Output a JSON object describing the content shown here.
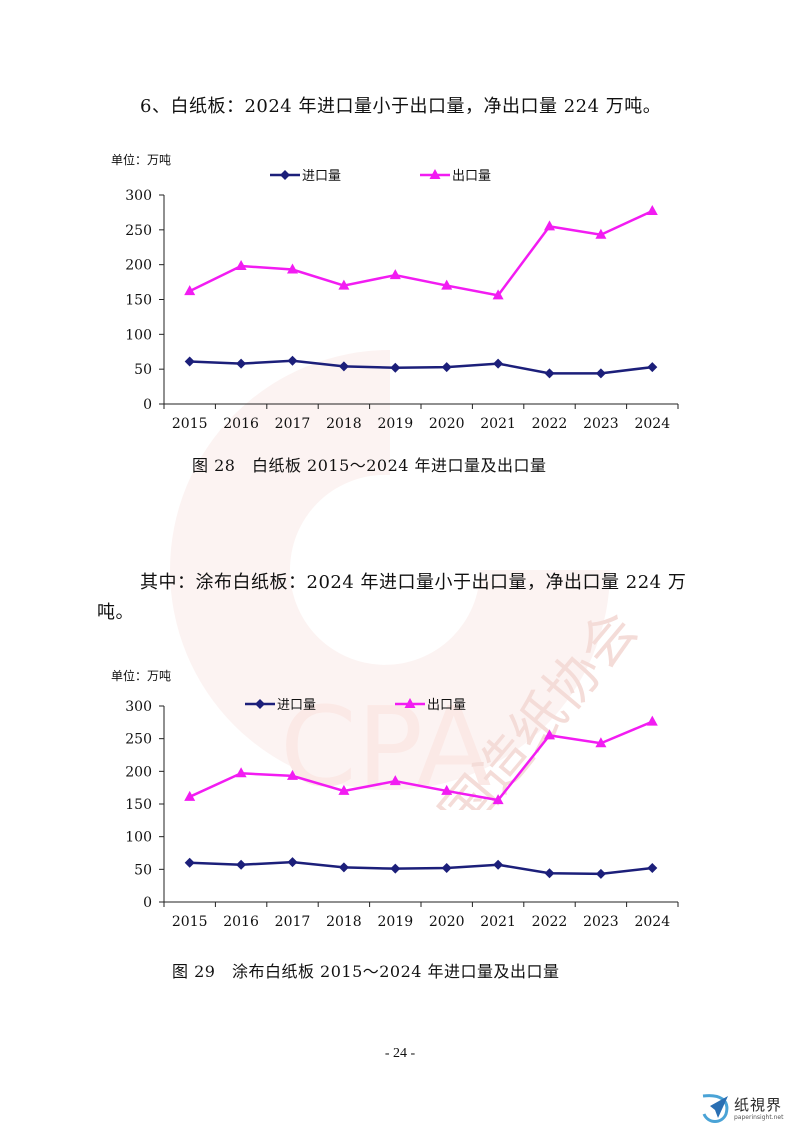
{
  "heading": "6、白纸板：2024 年进口量小于出口量，净出口量 224 万吨。",
  "paragraph": "其中：涂布白纸板：2024 年进口量小于出口量，净出口量 224 万吨。",
  "page_number": "- 24 -",
  "logo": {
    "name": "纸視界",
    "url": "paperinsight.net",
    "icon": "paper-plane-icon"
  },
  "watermark": {
    "text": "中国造纸协会",
    "latin": "CPA",
    "color": "#f3dcd8"
  },
  "colors": {
    "import": "#1c1f7a",
    "export": "#f21cf2"
  },
  "chart_data": [
    {
      "type": "line",
      "unit": "单位：万吨",
      "caption": "图 28　白纸板 2015～2024 年进口量及出口量",
      "categories": [
        "2015",
        "2016",
        "2017",
        "2018",
        "2019",
        "2020",
        "2021",
        "2022",
        "2023",
        "2024"
      ],
      "ylim": [
        0,
        300
      ],
      "yticks": [
        "0",
        "50",
        "100",
        "150",
        "200",
        "250",
        "300"
      ],
      "series": [
        {
          "name": "进口量",
          "marker": "diamond",
          "values": [
            61,
            58,
            62,
            54,
            52,
            53,
            58,
            44,
            44,
            53
          ]
        },
        {
          "name": "出口量",
          "marker": "triangle",
          "values": [
            162,
            198,
            193,
            170,
            185,
            170,
            156,
            255,
            243,
            277
          ]
        }
      ]
    },
    {
      "type": "line",
      "unit": "单位：万吨",
      "caption": "图 29　涂布白纸板 2015～2024 年进口量及出口量",
      "categories": [
        "2015",
        "2016",
        "2017",
        "2018",
        "2019",
        "2020",
        "2021",
        "2022",
        "2023",
        "2024"
      ],
      "ylim": [
        0,
        300
      ],
      "yticks": [
        "0",
        "50",
        "100",
        "150",
        "200",
        "250",
        "300"
      ],
      "series": [
        {
          "name": "进口量",
          "marker": "diamond",
          "values": [
            60,
            57,
            61,
            53,
            51,
            52,
            57,
            44,
            43,
            52
          ]
        },
        {
          "name": "出口量",
          "marker": "triangle",
          "values": [
            161,
            197,
            193,
            170,
            185,
            170,
            156,
            255,
            243,
            276
          ]
        }
      ]
    }
  ]
}
